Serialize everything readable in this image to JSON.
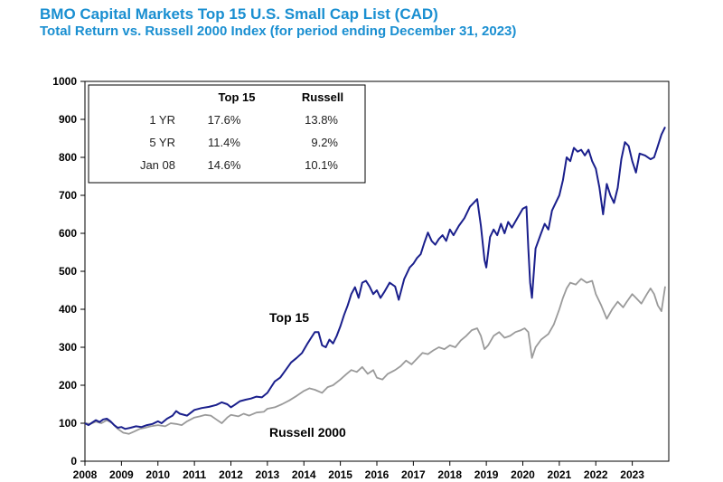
{
  "chart_data": {
    "type": "line",
    "title": "BMO Capital Markets Top 15 U.S. Small Cap List (CAD)",
    "subtitle": "Total Return vs. Russell 2000 Index (for period ending December 31, 2023)",
    "xlabel": "",
    "ylabel": "",
    "xlim": [
      2008,
      2024
    ],
    "ylim": [
      0,
      1000
    ],
    "yticks": [
      0,
      100,
      200,
      300,
      400,
      500,
      600,
      700,
      800,
      900,
      1000
    ],
    "xticks": [
      2008,
      2009,
      2010,
      2011,
      2012,
      2013,
      2014,
      2015,
      2016,
      2017,
      2018,
      2019,
      2020,
      2021,
      2022,
      2023
    ],
    "grid": false,
    "series": [
      {
        "name": "Top 15",
        "label": "Top 15",
        "color": "#1a1f8c",
        "points": [
          [
            2008.0,
            100
          ],
          [
            2008.1,
            95
          ],
          [
            2008.2,
            102
          ],
          [
            2008.3,
            108
          ],
          [
            2008.4,
            103
          ],
          [
            2008.5,
            110
          ],
          [
            2008.6,
            112
          ],
          [
            2008.7,
            105
          ],
          [
            2008.8,
            95
          ],
          [
            2008.9,
            88
          ],
          [
            2009.0,
            90
          ],
          [
            2009.1,
            85
          ],
          [
            2009.25,
            88
          ],
          [
            2009.4,
            92
          ],
          [
            2009.55,
            90
          ],
          [
            2009.7,
            95
          ],
          [
            2009.85,
            98
          ],
          [
            2010.0,
            105
          ],
          [
            2010.1,
            100
          ],
          [
            2010.25,
            112
          ],
          [
            2010.4,
            120
          ],
          [
            2010.5,
            132
          ],
          [
            2010.6,
            125
          ],
          [
            2010.8,
            120
          ],
          [
            2011.0,
            135
          ],
          [
            2011.2,
            140
          ],
          [
            2011.4,
            143
          ],
          [
            2011.6,
            148
          ],
          [
            2011.75,
            155
          ],
          [
            2011.9,
            150
          ],
          [
            2012.0,
            142
          ],
          [
            2012.1,
            148
          ],
          [
            2012.25,
            158
          ],
          [
            2012.4,
            162
          ],
          [
            2012.55,
            165
          ],
          [
            2012.7,
            170
          ],
          [
            2012.85,
            168
          ],
          [
            2013.0,
            180
          ],
          [
            2013.1,
            195
          ],
          [
            2013.2,
            210
          ],
          [
            2013.35,
            220
          ],
          [
            2013.5,
            240
          ],
          [
            2013.65,
            260
          ],
          [
            2013.8,
            272
          ],
          [
            2013.95,
            285
          ],
          [
            2014.1,
            310
          ],
          [
            2014.2,
            325
          ],
          [
            2014.3,
            340
          ],
          [
            2014.4,
            340
          ],
          [
            2014.5,
            305
          ],
          [
            2014.6,
            300
          ],
          [
            2014.7,
            320
          ],
          [
            2014.8,
            310
          ],
          [
            2014.9,
            330
          ],
          [
            2015.0,
            355
          ],
          [
            2015.1,
            385
          ],
          [
            2015.2,
            410
          ],
          [
            2015.3,
            440
          ],
          [
            2015.4,
            458
          ],
          [
            2015.5,
            430
          ],
          [
            2015.6,
            470
          ],
          [
            2015.7,
            475
          ],
          [
            2015.8,
            460
          ],
          [
            2015.9,
            440
          ],
          [
            2016.0,
            450
          ],
          [
            2016.1,
            430
          ],
          [
            2016.2,
            445
          ],
          [
            2016.35,
            470
          ],
          [
            2016.5,
            460
          ],
          [
            2016.6,
            425
          ],
          [
            2016.75,
            480
          ],
          [
            2016.9,
            510
          ],
          [
            2017.0,
            520
          ],
          [
            2017.1,
            535
          ],
          [
            2017.2,
            545
          ],
          [
            2017.3,
            575
          ],
          [
            2017.4,
            602
          ],
          [
            2017.5,
            580
          ],
          [
            2017.6,
            570
          ],
          [
            2017.7,
            585
          ],
          [
            2017.8,
            595
          ],
          [
            2017.9,
            580
          ],
          [
            2018.0,
            610
          ],
          [
            2018.1,
            595
          ],
          [
            2018.25,
            620
          ],
          [
            2018.4,
            640
          ],
          [
            2018.55,
            670
          ],
          [
            2018.65,
            680
          ],
          [
            2018.75,
            690
          ],
          [
            2018.85,
            620
          ],
          [
            2018.95,
            530
          ],
          [
            2019.0,
            510
          ],
          [
            2019.1,
            590
          ],
          [
            2019.2,
            610
          ],
          [
            2019.3,
            595
          ],
          [
            2019.4,
            625
          ],
          [
            2019.5,
            600
          ],
          [
            2019.6,
            630
          ],
          [
            2019.7,
            615
          ],
          [
            2019.85,
            640
          ],
          [
            2020.0,
            665
          ],
          [
            2020.1,
            670
          ],
          [
            2020.15,
            560
          ],
          [
            2020.2,
            470
          ],
          [
            2020.25,
            430
          ],
          [
            2020.35,
            560
          ],
          [
            2020.5,
            600
          ],
          [
            2020.6,
            625
          ],
          [
            2020.7,
            610
          ],
          [
            2020.8,
            660
          ],
          [
            2020.9,
            680
          ],
          [
            2021.0,
            700
          ],
          [
            2021.1,
            740
          ],
          [
            2021.2,
            800
          ],
          [
            2021.3,
            790
          ],
          [
            2021.4,
            825
          ],
          [
            2021.5,
            815
          ],
          [
            2021.6,
            820
          ],
          [
            2021.7,
            805
          ],
          [
            2021.8,
            820
          ],
          [
            2021.9,
            790
          ],
          [
            2022.0,
            770
          ],
          [
            2022.1,
            720
          ],
          [
            2022.2,
            650
          ],
          [
            2022.3,
            730
          ],
          [
            2022.4,
            700
          ],
          [
            2022.5,
            680
          ],
          [
            2022.6,
            720
          ],
          [
            2022.7,
            795
          ],
          [
            2022.8,
            840
          ],
          [
            2022.9,
            830
          ],
          [
            2023.0,
            790
          ],
          [
            2023.1,
            760
          ],
          [
            2023.2,
            810
          ],
          [
            2023.35,
            805
          ],
          [
            2023.5,
            795
          ],
          [
            2023.6,
            800
          ],
          [
            2023.7,
            830
          ],
          [
            2023.8,
            860
          ],
          [
            2023.9,
            880
          ]
        ]
      },
      {
        "name": "Russell 2000",
        "label": "Russell 2000",
        "color": "#9a9a9a",
        "points": [
          [
            2008.0,
            100
          ],
          [
            2008.15,
            98
          ],
          [
            2008.3,
            104
          ],
          [
            2008.45,
            100
          ],
          [
            2008.6,
            108
          ],
          [
            2008.75,
            100
          ],
          [
            2008.9,
            85
          ],
          [
            2009.05,
            75
          ],
          [
            2009.2,
            72
          ],
          [
            2009.35,
            78
          ],
          [
            2009.5,
            85
          ],
          [
            2009.65,
            88
          ],
          [
            2009.8,
            92
          ],
          [
            2010.0,
            95
          ],
          [
            2010.2,
            92
          ],
          [
            2010.35,
            100
          ],
          [
            2010.5,
            98
          ],
          [
            2010.65,
            95
          ],
          [
            2010.8,
            105
          ],
          [
            2011.0,
            115
          ],
          [
            2011.15,
            118
          ],
          [
            2011.3,
            122
          ],
          [
            2011.45,
            120
          ],
          [
            2011.6,
            110
          ],
          [
            2011.75,
            100
          ],
          [
            2011.9,
            115
          ],
          [
            2012.0,
            122
          ],
          [
            2012.2,
            118
          ],
          [
            2012.35,
            125
          ],
          [
            2012.5,
            120
          ],
          [
            2012.7,
            128
          ],
          [
            2012.9,
            130
          ],
          [
            2013.0,
            138
          ],
          [
            2013.2,
            142
          ],
          [
            2013.4,
            150
          ],
          [
            2013.6,
            160
          ],
          [
            2013.8,
            172
          ],
          [
            2014.0,
            185
          ],
          [
            2014.15,
            192
          ],
          [
            2014.3,
            188
          ],
          [
            2014.5,
            180
          ],
          [
            2014.65,
            195
          ],
          [
            2014.8,
            200
          ],
          [
            2015.0,
            215
          ],
          [
            2015.15,
            228
          ],
          [
            2015.3,
            240
          ],
          [
            2015.45,
            235
          ],
          [
            2015.6,
            248
          ],
          [
            2015.75,
            230
          ],
          [
            2015.9,
            240
          ],
          [
            2016.0,
            220
          ],
          [
            2016.15,
            215
          ],
          [
            2016.3,
            230
          ],
          [
            2016.5,
            240
          ],
          [
            2016.65,
            250
          ],
          [
            2016.8,
            265
          ],
          [
            2016.95,
            255
          ],
          [
            2017.1,
            270
          ],
          [
            2017.25,
            285
          ],
          [
            2017.4,
            282
          ],
          [
            2017.55,
            292
          ],
          [
            2017.7,
            300
          ],
          [
            2017.85,
            295
          ],
          [
            2018.0,
            305
          ],
          [
            2018.15,
            300
          ],
          [
            2018.3,
            318
          ],
          [
            2018.45,
            330
          ],
          [
            2018.6,
            345
          ],
          [
            2018.75,
            350
          ],
          [
            2018.85,
            330
          ],
          [
            2018.95,
            295
          ],
          [
            2019.05,
            305
          ],
          [
            2019.2,
            330
          ],
          [
            2019.35,
            340
          ],
          [
            2019.5,
            325
          ],
          [
            2019.65,
            330
          ],
          [
            2019.8,
            340
          ],
          [
            2019.95,
            345
          ],
          [
            2020.05,
            350
          ],
          [
            2020.15,
            340
          ],
          [
            2020.25,
            272
          ],
          [
            2020.35,
            300
          ],
          [
            2020.5,
            320
          ],
          [
            2020.7,
            335
          ],
          [
            2020.85,
            360
          ],
          [
            2021.0,
            400
          ],
          [
            2021.1,
            430
          ],
          [
            2021.2,
            455
          ],
          [
            2021.3,
            470
          ],
          [
            2021.45,
            465
          ],
          [
            2021.6,
            480
          ],
          [
            2021.75,
            470
          ],
          [
            2021.9,
            475
          ],
          [
            2022.0,
            440
          ],
          [
            2022.15,
            410
          ],
          [
            2022.3,
            375
          ],
          [
            2022.45,
            400
          ],
          [
            2022.6,
            420
          ],
          [
            2022.75,
            405
          ],
          [
            2022.85,
            420
          ],
          [
            2023.0,
            440
          ],
          [
            2023.1,
            430
          ],
          [
            2023.25,
            415
          ],
          [
            2023.4,
            440
          ],
          [
            2023.5,
            455
          ],
          [
            2023.6,
            440
          ],
          [
            2023.7,
            410
          ],
          [
            2023.8,
            395
          ],
          [
            2023.9,
            460
          ]
        ]
      }
    ],
    "table": {
      "headers": [
        "",
        "Top 15",
        "Russell"
      ],
      "rows": [
        [
          "1 YR",
          "17.6%",
          "13.8%"
        ],
        [
          "5 YR",
          "11.4%",
          "9.2%"
        ],
        [
          "Jan 08",
          "14.6%",
          "10.1%"
        ]
      ]
    }
  }
}
